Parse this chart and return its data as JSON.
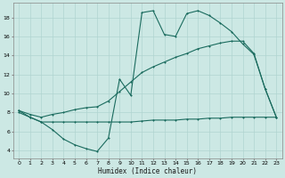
{
  "xlabel": "Humidex (Indice chaleur)",
  "bg_color": "#cce8e4",
  "grid_color": "#b0d4d0",
  "line_color": "#1a6b5e",
  "x_ticks": [
    0,
    1,
    2,
    3,
    4,
    5,
    6,
    7,
    8,
    9,
    10,
    11,
    12,
    13,
    14,
    15,
    16,
    17,
    18,
    19,
    20,
    21,
    22,
    23
  ],
  "y_ticks": [
    4,
    6,
    8,
    10,
    12,
    14,
    16,
    18
  ],
  "ylim": [
    3.2,
    19.5
  ],
  "xlim": [
    -0.5,
    23.5
  ],
  "series1_x": [
    0,
    1,
    2,
    3,
    4,
    5,
    6,
    7,
    8,
    9,
    10,
    11,
    12,
    13,
    14,
    15,
    16,
    17,
    18,
    19,
    20,
    21,
    22,
    23
  ],
  "series1_y": [
    8.2,
    7.5,
    7.0,
    6.2,
    5.2,
    4.6,
    4.2,
    3.9,
    5.3,
    11.5,
    9.8,
    18.5,
    18.7,
    16.2,
    16.0,
    18.4,
    18.7,
    18.2,
    17.4,
    16.5,
    15.2,
    14.1,
    10.5,
    7.5
  ],
  "series2_x": [
    0,
    1,
    2,
    3,
    4,
    5,
    6,
    7,
    8,
    9,
    10,
    11,
    12,
    13,
    14,
    15,
    16,
    17,
    18,
    19,
    20,
    21,
    22,
    23
  ],
  "series2_y": [
    8.0,
    7.5,
    7.0,
    7.0,
    7.0,
    7.0,
    7.0,
    7.0,
    7.0,
    7.0,
    7.0,
    7.1,
    7.2,
    7.2,
    7.2,
    7.3,
    7.3,
    7.4,
    7.4,
    7.5,
    7.5,
    7.5,
    7.5,
    7.5
  ],
  "series3_x": [
    0,
    1,
    2,
    3,
    4,
    5,
    6,
    7,
    8,
    9,
    10,
    11,
    12,
    13,
    14,
    15,
    16,
    17,
    18,
    19,
    20,
    21,
    22,
    23
  ],
  "series3_y": [
    8.2,
    7.8,
    7.5,
    7.8,
    8.0,
    8.3,
    8.5,
    8.6,
    9.2,
    10.2,
    11.2,
    12.2,
    12.8,
    13.3,
    13.8,
    14.2,
    14.7,
    15.0,
    15.3,
    15.5,
    15.5,
    14.2,
    10.5,
    7.5
  ]
}
